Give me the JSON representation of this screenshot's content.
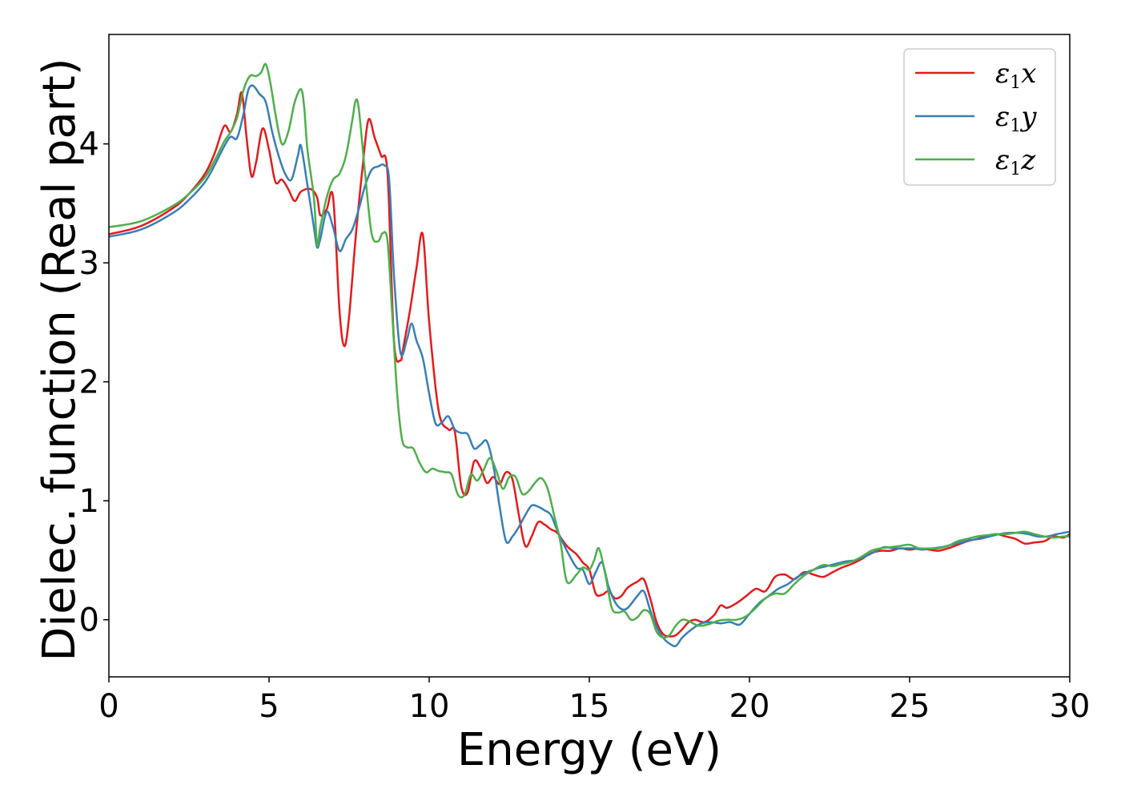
{
  "chart_data": {
    "type": "line",
    "title": "",
    "xlabel": "Energy (eV)",
    "ylabel": "Dielec. function (Real part)",
    "xlim": [
      0,
      30
    ],
    "ylim": [
      -0.48,
      4.92
    ],
    "xticks": [
      0,
      5,
      10,
      15,
      20,
      25,
      30
    ],
    "xtick_labels": [
      "0",
      "5",
      "10",
      "15",
      "20",
      "25",
      "30"
    ],
    "yticks": [
      0,
      1,
      2,
      3,
      4
    ],
    "ytick_labels": [
      "0",
      "1",
      "2",
      "3",
      "4"
    ],
    "grid": false,
    "legend_position": "top-right",
    "series": [
      {
        "name": "ε1x",
        "legend": {
          "base": "ε",
          "sub": "1",
          "tail": "x"
        },
        "color": "#e41a1c",
        "x": [
          0,
          1,
          2,
          2.5,
          3,
          3.3,
          3.6,
          3.8,
          4.0,
          4.15,
          4.3,
          4.45,
          4.6,
          4.8,
          5.0,
          5.2,
          5.4,
          5.6,
          5.8,
          6.0,
          6.3,
          6.5,
          6.6,
          6.8,
          7.0,
          7.2,
          7.35,
          7.5,
          7.7,
          7.9,
          8.1,
          8.3,
          8.5,
          8.7,
          8.9,
          9.1,
          9.2,
          9.4,
          9.6,
          9.8,
          10.0,
          10.3,
          10.6,
          10.8,
          11.0,
          11.2,
          11.4,
          11.6,
          11.8,
          12.0,
          12.2,
          12.4,
          12.6,
          12.8,
          13.0,
          13.2,
          13.4,
          13.6,
          13.8,
          14.0,
          14.3,
          14.6,
          14.8,
          15.0,
          15.2,
          15.4,
          15.6,
          15.8,
          16.0,
          16.2,
          16.5,
          16.7,
          16.9,
          17.1,
          17.3,
          17.5,
          17.7,
          17.9,
          18.1,
          18.3,
          18.6,
          18.9,
          19.1,
          19.3,
          19.6,
          19.9,
          20.2,
          20.5,
          20.8,
          21.1,
          21.4,
          21.7,
          22.0,
          22.3,
          22.6,
          22.9,
          23.2,
          23.5,
          23.8,
          24.1,
          24.4,
          24.7,
          25.0,
          25.3,
          25.6,
          25.9,
          26.2,
          26.5,
          26.8,
          27.1,
          27.4,
          27.7,
          28.0,
          28.3,
          28.6,
          28.9,
          29.2,
          29.5,
          29.8,
          30.0
        ],
        "y": [
          3.24,
          3.31,
          3.46,
          3.58,
          3.75,
          3.92,
          4.15,
          4.1,
          4.25,
          4.43,
          4.05,
          3.73,
          3.85,
          4.13,
          3.95,
          3.68,
          3.7,
          3.62,
          3.52,
          3.6,
          3.62,
          3.55,
          3.4,
          3.45,
          3.55,
          2.6,
          2.3,
          2.55,
          3.2,
          3.75,
          4.2,
          4.05,
          3.9,
          3.75,
          2.35,
          2.18,
          2.3,
          2.6,
          2.95,
          3.24,
          2.5,
          1.75,
          1.6,
          1.58,
          1.12,
          1.07,
          1.33,
          1.28,
          1.15,
          1.2,
          1.14,
          1.24,
          1.18,
          0.88,
          0.62,
          0.7,
          0.82,
          0.8,
          0.76,
          0.73,
          0.62,
          0.55,
          0.48,
          0.42,
          0.22,
          0.21,
          0.24,
          0.18,
          0.2,
          0.27,
          0.32,
          0.34,
          0.18,
          -0.02,
          -0.12,
          -0.14,
          -0.13,
          -0.08,
          -0.02,
          0.0,
          -0.02,
          0.04,
          0.12,
          0.1,
          0.14,
          0.2,
          0.26,
          0.24,
          0.36,
          0.38,
          0.34,
          0.4,
          0.38,
          0.36,
          0.4,
          0.44,
          0.47,
          0.51,
          0.56,
          0.58,
          0.58,
          0.6,
          0.59,
          0.6,
          0.59,
          0.58,
          0.6,
          0.63,
          0.66,
          0.68,
          0.7,
          0.72,
          0.7,
          0.68,
          0.64,
          0.65,
          0.66,
          0.7,
          0.69,
          0.72
        ]
      },
      {
        "name": "ε1y",
        "legend": {
          "base": "ε",
          "sub": "1",
          "tail": "y"
        },
        "color": "#377eb8",
        "x": [
          0,
          1,
          2,
          2.5,
          3,
          3.3,
          3.6,
          3.8,
          4.0,
          4.2,
          4.35,
          4.5,
          4.7,
          4.9,
          5.1,
          5.3,
          5.5,
          5.7,
          5.9,
          6.0,
          6.2,
          6.4,
          6.5,
          6.6,
          6.8,
          7.0,
          7.2,
          7.4,
          7.6,
          7.8,
          8.0,
          8.2,
          8.4,
          8.6,
          8.75,
          8.9,
          9.1,
          9.3,
          9.45,
          9.6,
          9.8,
          10.0,
          10.2,
          10.4,
          10.6,
          10.8,
          11.0,
          11.2,
          11.4,
          11.6,
          11.8,
          12.0,
          12.2,
          12.4,
          12.6,
          12.8,
          13.0,
          13.2,
          13.4,
          13.6,
          13.8,
          14.0,
          14.3,
          14.6,
          14.8,
          15.0,
          15.2,
          15.4,
          15.6,
          15.8,
          16.0,
          16.2,
          16.5,
          16.7,
          16.9,
          17.1,
          17.3,
          17.5,
          17.7,
          17.9,
          18.2,
          18.5,
          18.8,
          19.1,
          19.4,
          19.7,
          20.0,
          20.3,
          20.6,
          20.9,
          21.2,
          21.5,
          21.8,
          22.1,
          22.4,
          22.7,
          23.0,
          23.3,
          23.6,
          23.9,
          24.2,
          24.5,
          24.8,
          25.1,
          25.4,
          25.7,
          26.0,
          26.3,
          26.6,
          26.9,
          27.2,
          27.5,
          27.8,
          28.1,
          28.4,
          28.7,
          29.0,
          29.3,
          29.6,
          30.0
        ],
        "y": [
          3.22,
          3.28,
          3.42,
          3.53,
          3.68,
          3.82,
          3.98,
          4.06,
          4.05,
          4.25,
          4.45,
          4.49,
          4.42,
          4.35,
          4.1,
          3.9,
          3.75,
          3.7,
          3.9,
          3.98,
          3.65,
          3.3,
          3.13,
          3.2,
          3.43,
          3.3,
          3.1,
          3.2,
          3.28,
          3.45,
          3.65,
          3.78,
          3.81,
          3.82,
          3.7,
          2.9,
          2.25,
          2.35,
          2.49,
          2.35,
          2.2,
          1.9,
          1.65,
          1.66,
          1.71,
          1.6,
          1.57,
          1.56,
          1.44,
          1.47,
          1.5,
          1.3,
          0.95,
          0.66,
          0.7,
          0.78,
          0.88,
          0.96,
          0.95,
          0.92,
          0.88,
          0.75,
          0.58,
          0.44,
          0.42,
          0.3,
          0.4,
          0.48,
          0.28,
          0.15,
          0.09,
          0.1,
          0.2,
          0.24,
          0.08,
          -0.06,
          -0.15,
          -0.2,
          -0.22,
          -0.15,
          -0.08,
          -0.03,
          -0.02,
          -0.03,
          -0.02,
          -0.04,
          0.05,
          0.14,
          0.2,
          0.26,
          0.3,
          0.36,
          0.4,
          0.43,
          0.45,
          0.47,
          0.49,
          0.5,
          0.53,
          0.57,
          0.61,
          0.6,
          0.6,
          0.6,
          0.59,
          0.6,
          0.61,
          0.63,
          0.65,
          0.67,
          0.68,
          0.7,
          0.72,
          0.73,
          0.73,
          0.72,
          0.7,
          0.7,
          0.72,
          0.74
        ]
      },
      {
        "name": "ε1z",
        "legend": {
          "base": "ε",
          "sub": "1",
          "tail": "z"
        },
        "color": "#4daf4a",
        "x": [
          0,
          1,
          2,
          2.5,
          3,
          3.3,
          3.6,
          3.8,
          4.0,
          4.2,
          4.4,
          4.6,
          4.75,
          4.9,
          5.05,
          5.2,
          5.4,
          5.6,
          5.8,
          6.0,
          6.1,
          6.2,
          6.4,
          6.5,
          6.6,
          6.8,
          7.0,
          7.2,
          7.4,
          7.6,
          7.7,
          7.8,
          8.0,
          8.2,
          8.4,
          8.55,
          8.7,
          8.85,
          9.0,
          9.15,
          9.3,
          9.5,
          9.7,
          9.9,
          10.1,
          10.3,
          10.5,
          10.7,
          10.9,
          11.1,
          11.3,
          11.5,
          11.7,
          11.9,
          12.1,
          12.3,
          12.5,
          12.7,
          12.9,
          13.1,
          13.3,
          13.5,
          13.7,
          13.9,
          14.1,
          14.3,
          14.6,
          14.8,
          15.0,
          15.15,
          15.3,
          15.5,
          15.7,
          15.9,
          16.1,
          16.3,
          16.5,
          16.7,
          16.9,
          17.1,
          17.3,
          17.5,
          17.7,
          17.9,
          18.1,
          18.4,
          18.7,
          19.0,
          19.3,
          19.6,
          19.9,
          20.2,
          20.5,
          20.8,
          21.1,
          21.4,
          21.7,
          22.0,
          22.3,
          22.6,
          22.9,
          23.2,
          23.5,
          23.8,
          24.1,
          24.4,
          24.7,
          25.0,
          25.3,
          25.6,
          25.9,
          26.2,
          26.5,
          26.8,
          27.1,
          27.4,
          27.7,
          28.0,
          28.3,
          28.6,
          28.9,
          29.2,
          29.5,
          29.8,
          30.0
        ],
        "y": [
          3.3,
          3.35,
          3.48,
          3.58,
          3.72,
          3.86,
          4.02,
          4.1,
          4.22,
          4.45,
          4.57,
          4.57,
          4.6,
          4.67,
          4.5,
          4.25,
          4.0,
          4.1,
          4.35,
          4.46,
          4.3,
          3.95,
          3.55,
          3.15,
          3.3,
          3.55,
          3.7,
          3.75,
          3.9,
          4.2,
          4.36,
          4.3,
          3.75,
          3.25,
          3.18,
          3.25,
          3.18,
          2.55,
          1.9,
          1.52,
          1.45,
          1.44,
          1.32,
          1.24,
          1.27,
          1.25,
          1.24,
          1.22,
          1.05,
          1.05,
          1.22,
          1.17,
          1.26,
          1.36,
          1.25,
          1.1,
          1.2,
          1.2,
          1.06,
          1.08,
          1.15,
          1.19,
          1.1,
          0.88,
          0.65,
          0.32,
          0.38,
          0.44,
          0.42,
          0.5,
          0.6,
          0.38,
          0.1,
          0.06,
          0.07,
          0.0,
          0.02,
          0.08,
          0.05,
          -0.1,
          -0.15,
          -0.13,
          -0.05,
          0.0,
          -0.01,
          -0.05,
          -0.04,
          -0.01,
          0.0,
          0.0,
          0.03,
          0.1,
          0.18,
          0.22,
          0.22,
          0.3,
          0.37,
          0.42,
          0.46,
          0.45,
          0.47,
          0.49,
          0.53,
          0.58,
          0.6,
          0.61,
          0.62,
          0.63,
          0.6,
          0.6,
          0.6,
          0.62,
          0.66,
          0.68,
          0.7,
          0.71,
          0.72,
          0.72,
          0.73,
          0.74,
          0.72,
          0.7,
          0.69,
          0.7,
          0.7
        ]
      }
    ]
  }
}
